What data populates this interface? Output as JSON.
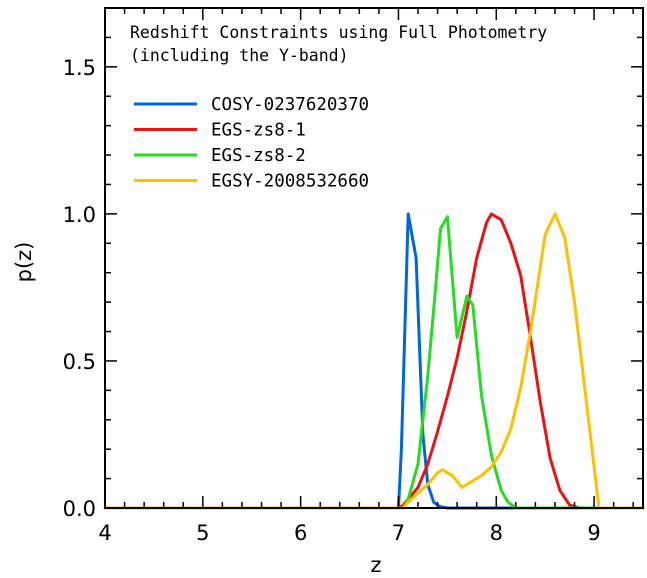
{
  "chart_data": {
    "type": "line",
    "title": "",
    "xlabel": "z",
    "ylabel": "p(z)",
    "xlim": [
      4,
      9.5
    ],
    "ylim": [
      0,
      1.7
    ],
    "x_ticks": [
      4,
      5,
      6,
      7,
      8,
      9
    ],
    "y_ticks": [
      0.0,
      0.5,
      1.0,
      1.5
    ],
    "x_tick_labels": [
      "4",
      "5",
      "6",
      "7",
      "8",
      "9"
    ],
    "y_tick_labels": [
      "0.0",
      "0.5",
      "1.0",
      "1.5"
    ],
    "grid": false,
    "annotation": [
      "Redshift Constraints using Full Photometry",
      "(including the Y-band)"
    ],
    "legend_position": "top-left",
    "series": [
      {
        "name": "COSY-0237620370",
        "color": "#0066dd",
        "x": [
          4.0,
          6.95,
          7.0,
          7.03,
          7.1,
          7.18,
          7.25,
          7.3,
          7.36,
          7.42,
          7.5,
          9.5
        ],
        "y": [
          0.0,
          0.0,
          0.0,
          0.2,
          1.0,
          0.85,
          0.25,
          0.08,
          0.02,
          0.005,
          0.0,
          0.0
        ]
      },
      {
        "name": "EGS-zs8-1",
        "color": "#ee1111",
        "x": [
          4.0,
          7.0,
          7.05,
          7.1,
          7.2,
          7.3,
          7.4,
          7.5,
          7.6,
          7.7,
          7.8,
          7.9,
          7.95,
          8.05,
          8.15,
          8.25,
          8.35,
          8.45,
          8.55,
          8.65,
          8.75,
          8.85,
          9.5
        ],
        "y": [
          0.0,
          0.0,
          0.01,
          0.03,
          0.07,
          0.15,
          0.26,
          0.38,
          0.51,
          0.67,
          0.85,
          0.97,
          1.0,
          0.98,
          0.9,
          0.79,
          0.58,
          0.36,
          0.17,
          0.06,
          0.01,
          0.0,
          0.0
        ]
      },
      {
        "name": "EGS-zs8-2",
        "color": "#22dd22",
        "x": [
          4.0,
          7.05,
          7.1,
          7.2,
          7.3,
          7.38,
          7.43,
          7.5,
          7.6,
          7.7,
          7.76,
          7.85,
          7.95,
          8.05,
          8.12,
          8.2,
          9.5
        ],
        "y": [
          0.0,
          0.0,
          0.03,
          0.15,
          0.45,
          0.75,
          0.95,
          0.99,
          0.58,
          0.72,
          0.69,
          0.38,
          0.18,
          0.06,
          0.02,
          0.0,
          0.0
        ]
      },
      {
        "name": "EGSY-2008532660",
        "color": "#ffc000",
        "x": [
          4.0,
          7.05,
          7.1,
          7.2,
          7.3,
          7.4,
          7.45,
          7.55,
          7.65,
          7.75,
          7.85,
          7.95,
          8.05,
          8.15,
          8.25,
          8.35,
          8.45,
          8.5,
          8.6,
          8.7,
          8.8,
          8.9,
          9.0,
          9.05,
          9.5
        ],
        "y": [
          0.0,
          0.0,
          0.02,
          0.05,
          0.08,
          0.12,
          0.13,
          0.11,
          0.07,
          0.09,
          0.11,
          0.14,
          0.19,
          0.27,
          0.41,
          0.6,
          0.82,
          0.93,
          1.0,
          0.92,
          0.7,
          0.42,
          0.14,
          0.0,
          0.0
        ]
      }
    ]
  }
}
